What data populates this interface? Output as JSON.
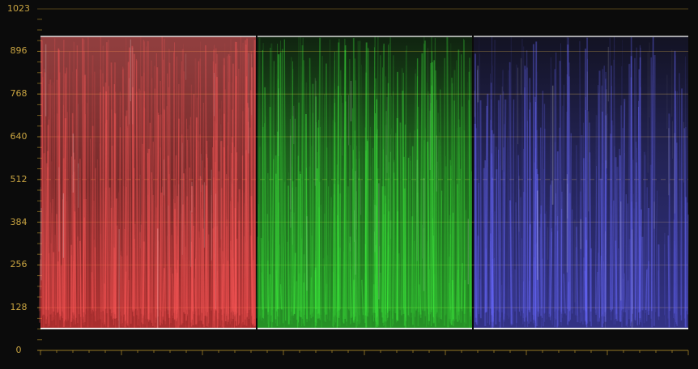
{
  "scope": {
    "type": "RGB Parade",
    "scale": {
      "min": 0,
      "max": 1023
    },
    "ticks": [
      {
        "label": "1023",
        "value": 1023
      },
      {
        "label": "896",
        "value": 896
      },
      {
        "label": "768",
        "value": 768
      },
      {
        "label": "640",
        "value": 640
      },
      {
        "label": "512",
        "value": 512
      },
      {
        "label": "384",
        "value": 384
      },
      {
        "label": "256",
        "value": 256
      },
      {
        "label": "128",
        "value": 128
      },
      {
        "label": "0",
        "value": 0
      }
    ],
    "channels": [
      {
        "name": "red",
        "color": "#ff5a5a"
      },
      {
        "name": "green",
        "color": "#3ef03e"
      },
      {
        "name": "blue",
        "color": "#6a6aff"
      }
    ],
    "colors": {
      "background": "#0b0b0b",
      "gridline": "#b8932c",
      "label": "#c9a441"
    }
  }
}
